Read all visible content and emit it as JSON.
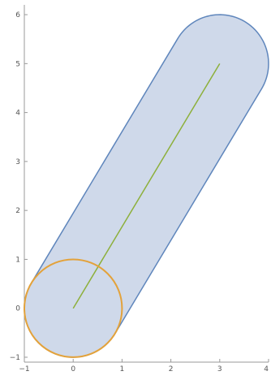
{
  "chart_data": {
    "type": "region-plot",
    "title": "",
    "xlabel": "",
    "ylabel": "",
    "xlim": [
      -1,
      4
    ],
    "ylim": [
      -1.1,
      6.2
    ],
    "x_ticks": [
      -1,
      0,
      1,
      2,
      3,
      4
    ],
    "y_ticks": [
      -1,
      0,
      1,
      2,
      3,
      4,
      5,
      6
    ],
    "grid": false,
    "segment": {
      "start": [
        0,
        0
      ],
      "end": [
        3,
        5
      ],
      "color": "#8DB03B"
    },
    "capsule": {
      "description": "set of points within distance 1 of the segment",
      "radius": 1,
      "fill": "#CFD9EA",
      "stroke": "#5F86BC"
    },
    "circle": {
      "center": [
        0,
        0
      ],
      "radius": 1,
      "color": "#E3A23B"
    }
  }
}
